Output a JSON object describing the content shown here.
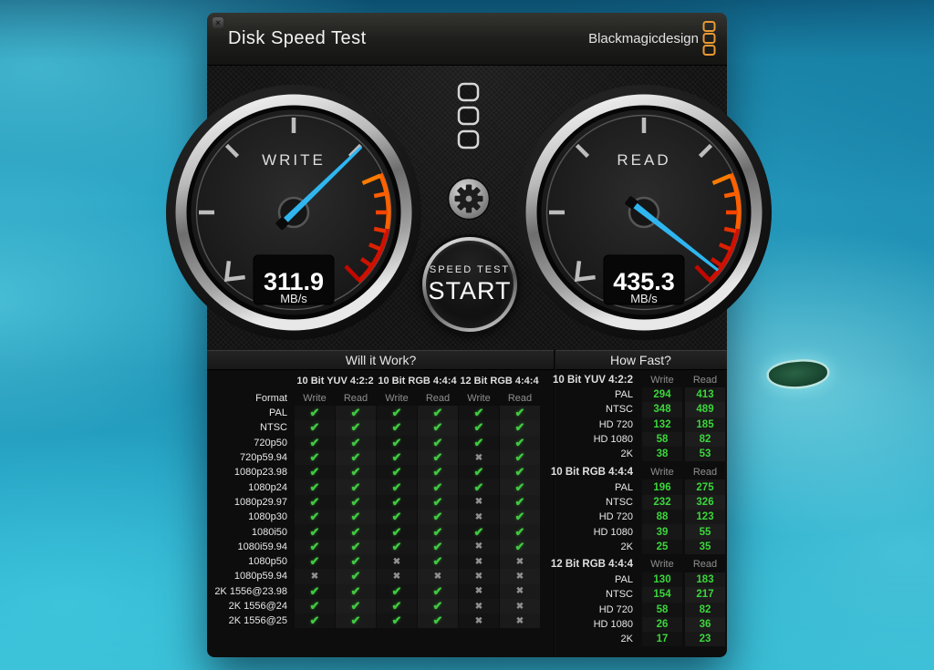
{
  "window": {
    "title": "Disk Speed Test",
    "close_glyph": "×",
    "brand": "Blackmagicdesign"
  },
  "gauges": {
    "write": {
      "label": "WRITE",
      "value": "311.9",
      "unit": "MB/s",
      "needle_rotation": 46
    },
    "read": {
      "label": "READ",
      "value": "435.3",
      "unit": "MB/s",
      "needle_rotation": 128
    }
  },
  "start_button": {
    "line1": "SPEED TEST",
    "line2": "START"
  },
  "glyphs": {
    "pass": "✔",
    "fail": "✖"
  },
  "will_it_work": {
    "title": "Will it Work?",
    "format_header": "Format",
    "group_headers": [
      "10 Bit YUV 4:2:2",
      "10 Bit RGB 4:4:4",
      "12 Bit RGB 4:4:4"
    ],
    "sub_headers": [
      "Write",
      "Read"
    ],
    "rows": [
      {
        "format": "PAL",
        "results": [
          true,
          true,
          true,
          true,
          true,
          true
        ]
      },
      {
        "format": "NTSC",
        "results": [
          true,
          true,
          true,
          true,
          true,
          true
        ]
      },
      {
        "format": "720p50",
        "results": [
          true,
          true,
          true,
          true,
          true,
          true
        ]
      },
      {
        "format": "720p59.94",
        "results": [
          true,
          true,
          true,
          true,
          false,
          true
        ]
      },
      {
        "format": "1080p23.98",
        "results": [
          true,
          true,
          true,
          true,
          true,
          true
        ]
      },
      {
        "format": "1080p24",
        "results": [
          true,
          true,
          true,
          true,
          true,
          true
        ]
      },
      {
        "format": "1080p29.97",
        "results": [
          true,
          true,
          true,
          true,
          false,
          true
        ]
      },
      {
        "format": "1080p30",
        "results": [
          true,
          true,
          true,
          true,
          false,
          true
        ]
      },
      {
        "format": "1080i50",
        "results": [
          true,
          true,
          true,
          true,
          true,
          true
        ]
      },
      {
        "format": "1080i59.94",
        "results": [
          true,
          true,
          true,
          true,
          false,
          true
        ]
      },
      {
        "format": "1080p50",
        "results": [
          true,
          true,
          false,
          true,
          false,
          false
        ]
      },
      {
        "format": "1080p59.94",
        "results": [
          false,
          true,
          false,
          false,
          false,
          false
        ]
      },
      {
        "format": "2K 1556@23.98",
        "results": [
          true,
          true,
          true,
          true,
          false,
          false
        ]
      },
      {
        "format": "2K 1556@24",
        "results": [
          true,
          true,
          true,
          true,
          false,
          false
        ]
      },
      {
        "format": "2K 1556@25",
        "results": [
          true,
          true,
          true,
          true,
          false,
          false
        ]
      }
    ]
  },
  "how_fast": {
    "title": "How Fast?",
    "write_header": "Write",
    "read_header": "Read",
    "groups": [
      {
        "name": "10 Bit YUV 4:2:2",
        "rows": [
          {
            "format": "PAL",
            "write": 294,
            "read": 413
          },
          {
            "format": "NTSC",
            "write": 348,
            "read": 489
          },
          {
            "format": "HD 720",
            "write": 132,
            "read": 185
          },
          {
            "format": "HD 1080",
            "write": 58,
            "read": 82
          },
          {
            "format": "2K",
            "write": 38,
            "read": 53
          }
        ]
      },
      {
        "name": "10 Bit RGB 4:4:4",
        "rows": [
          {
            "format": "PAL",
            "write": 196,
            "read": 275
          },
          {
            "format": "NTSC",
            "write": 232,
            "read": 326
          },
          {
            "format": "HD 720",
            "write": 88,
            "read": 123
          },
          {
            "format": "HD 1080",
            "write": 39,
            "read": 55
          },
          {
            "format": "2K",
            "write": 25,
            "read": 35
          }
        ]
      },
      {
        "name": "12 Bit RGB 4:4:4",
        "rows": [
          {
            "format": "PAL",
            "write": 130,
            "read": 183
          },
          {
            "format": "NTSC",
            "write": 154,
            "read": 217
          },
          {
            "format": "HD 720",
            "write": 58,
            "read": 82
          },
          {
            "format": "HD 1080",
            "write": 26,
            "read": 36
          },
          {
            "format": "2K",
            "write": 17,
            "read": 23
          }
        ]
      }
    ]
  },
  "colors": {
    "needle_blue": "#2FB6F0",
    "check_green": "#41C941",
    "value_green": "#3BD63B",
    "brand_orange": "#EA9A33",
    "redline": "#D11500"
  }
}
